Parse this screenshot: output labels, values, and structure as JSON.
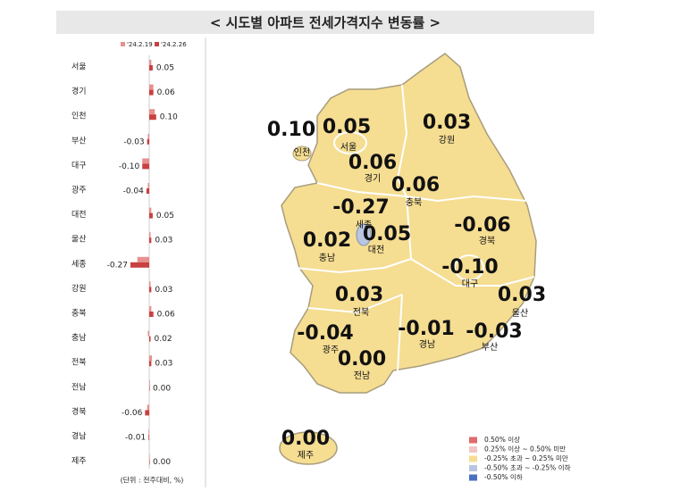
{
  "chart_data": {
    "type": "bar",
    "orientation": "horizontal",
    "title": "< 시도별 아파트 전세가격지수 변동률 >",
    "categories": [
      "서울",
      "경기",
      "인천",
      "부산",
      "대구",
      "광주",
      "대전",
      "울산",
      "세종",
      "강원",
      "충북",
      "충남",
      "전북",
      "전남",
      "경북",
      "경남",
      "제주"
    ],
    "series": [
      {
        "name": "'24.2.19",
        "color": "#e89090",
        "values": [
          0.03,
          0.06,
          0.08,
          -0.02,
          -0.1,
          -0.02,
          0.03,
          0.02,
          -0.17,
          0.02,
          0.03,
          -0.02,
          0.04,
          0.01,
          -0.03,
          -0.01,
          0.0
        ]
      },
      {
        "name": "'24.2.26",
        "color": "#c8403f",
        "values": [
          0.05,
          0.06,
          0.1,
          -0.03,
          -0.1,
          -0.04,
          0.05,
          0.03,
          -0.27,
          0.03,
          0.06,
          0.02,
          0.03,
          0.0,
          -0.06,
          -0.01,
          0.0
        ],
        "value_labels": [
          "0.05",
          "0.06",
          "0.10",
          "-0.03",
          "-0.10",
          "-0.04",
          "0.05",
          "0.03",
          "-0.27",
          "0.03",
          "0.06",
          "0.02",
          "0.03",
          "0.00",
          "-0.06",
          "-0.01",
          "0.00"
        ]
      }
    ],
    "footnote": "(단위 : 전주대비, %)",
    "map_legend": [
      {
        "label": "0.50% 이상",
        "color": "#e06a6a"
      },
      {
        "label": "0.25% 이상 ~ 0.50% 미만",
        "color": "#f2c4c4"
      },
      {
        "label": "-0.25% 초과 ~ 0.25% 미만",
        "color": "#f5dd92"
      },
      {
        "label": "-0.50% 초과 ~ -0.25% 이하",
        "color": "#b9c6e2"
      },
      {
        "label": "-0.50% 이하",
        "color": "#4a6fc2"
      }
    ]
  }
}
